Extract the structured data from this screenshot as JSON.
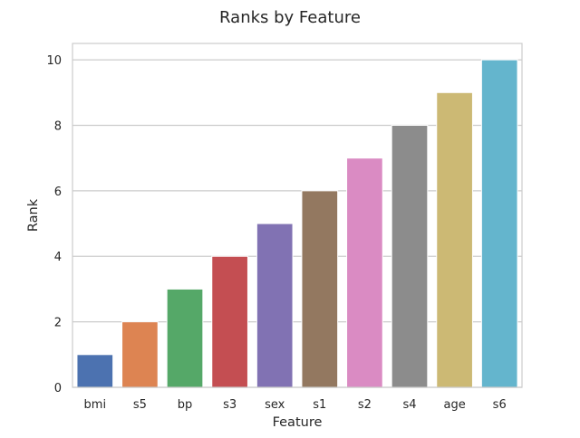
{
  "chart_data": {
    "type": "bar",
    "title": "Ranks by Feature",
    "xlabel": "Feature",
    "ylabel": "Rank",
    "categories": [
      "bmi",
      "s5",
      "bp",
      "s3",
      "sex",
      "s1",
      "s2",
      "s4",
      "age",
      "s6"
    ],
    "values": [
      1,
      2,
      3,
      4,
      5,
      6,
      7,
      8,
      9,
      10
    ],
    "ylim": [
      0,
      10.5
    ],
    "yticks": [
      0,
      2,
      4,
      6,
      8,
      10
    ],
    "grid": true,
    "style": "seaborn-whitegrid",
    "colors": [
      "#4c72b0",
      "#dd8452",
      "#55a868",
      "#c44e52",
      "#8172b3",
      "#937860",
      "#da8bc3",
      "#8c8c8c",
      "#ccb974",
      "#64b5cd"
    ]
  }
}
